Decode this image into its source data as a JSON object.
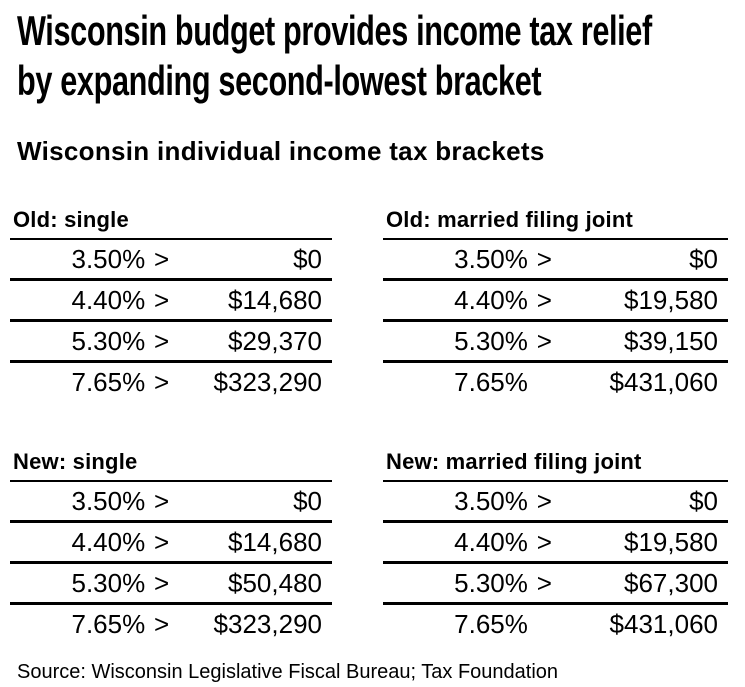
{
  "header": {
    "title_line1": "Wisconsin budget provides income tax relief",
    "title_line2": "by expanding second-lowest bracket",
    "subtitle": "Wisconsin individual income tax brackets"
  },
  "tables": [
    {
      "title": "Old: single",
      "rows": [
        {
          "rate": "3.50%",
          "gt": ">",
          "amount": "$0"
        },
        {
          "rate": "4.40%",
          "gt": ">",
          "amount": "$14,680"
        },
        {
          "rate": "5.30%",
          "gt": ">",
          "amount": "$29,370"
        },
        {
          "rate": "7.65%",
          "gt": ">",
          "amount": "$323,290"
        }
      ]
    },
    {
      "title": "Old: married filing joint",
      "rows": [
        {
          "rate": "3.50%",
          "gt": ">",
          "amount": "$0"
        },
        {
          "rate": "4.40%",
          "gt": ">",
          "amount": "$19,580"
        },
        {
          "rate": "5.30%",
          "gt": ">",
          "amount": "$39,150"
        },
        {
          "rate": "7.65%",
          "gt": "",
          "amount": "$431,060"
        }
      ]
    },
    {
      "title": "New: single",
      "rows": [
        {
          "rate": "3.50%",
          "gt": ">",
          "amount": "$0"
        },
        {
          "rate": "4.40%",
          "gt": ">",
          "amount": "$14,680"
        },
        {
          "rate": "5.30%",
          "gt": ">",
          "amount": "$50,480"
        },
        {
          "rate": "7.65%",
          "gt": ">",
          "amount": "$323,290"
        }
      ]
    },
    {
      "title": "New: married filing joint",
      "rows": [
        {
          "rate": "3.50%",
          "gt": ">",
          "amount": "$0"
        },
        {
          "rate": "4.40%",
          "gt": ">",
          "amount": "$19,580"
        },
        {
          "rate": "5.30%",
          "gt": ">",
          "amount": "$67,300"
        },
        {
          "rate": "7.65%",
          "gt": "",
          "amount": "$431,060"
        }
      ]
    }
  ],
  "source": "Source: Wisconsin Legislative Fiscal Bureau; Tax Foundation",
  "colors": {
    "text": "#000000",
    "background": "#ffffff",
    "rule": "#000000"
  },
  "chart_data": {
    "type": "table",
    "title": "Wisconsin budget provides income tax relief by expanding second-lowest bracket",
    "subtitle": "Wisconsin individual income tax brackets",
    "source": "Source: Wisconsin Legislative Fiscal Bureau; Tax Foundation",
    "tables": [
      {
        "title": "Old: single",
        "rows": [
          [
            "3.50%",
            "$0"
          ],
          [
            "4.40%",
            "$14,680"
          ],
          [
            "5.30%",
            "$29,370"
          ],
          [
            "7.65%",
            "$323,290"
          ]
        ]
      },
      {
        "title": "Old: married filing joint",
        "rows": [
          [
            "3.50%",
            "$0"
          ],
          [
            "4.40%",
            "$19,580"
          ],
          [
            "5.30%",
            "$39,150"
          ],
          [
            "7.65%",
            "$431,060"
          ]
        ]
      },
      {
        "title": "New: single",
        "rows": [
          [
            "3.50%",
            "$0"
          ],
          [
            "4.40%",
            "$14,680"
          ],
          [
            "5.30%",
            "$50,480"
          ],
          [
            "7.65%",
            "$323,290"
          ]
        ]
      },
      {
        "title": "New: married filing joint",
        "rows": [
          [
            "3.50%",
            "$0"
          ],
          [
            "4.40%",
            "$19,580"
          ],
          [
            "5.30%",
            "$67,300"
          ],
          [
            "7.65%",
            "$431,060"
          ]
        ]
      }
    ]
  }
}
